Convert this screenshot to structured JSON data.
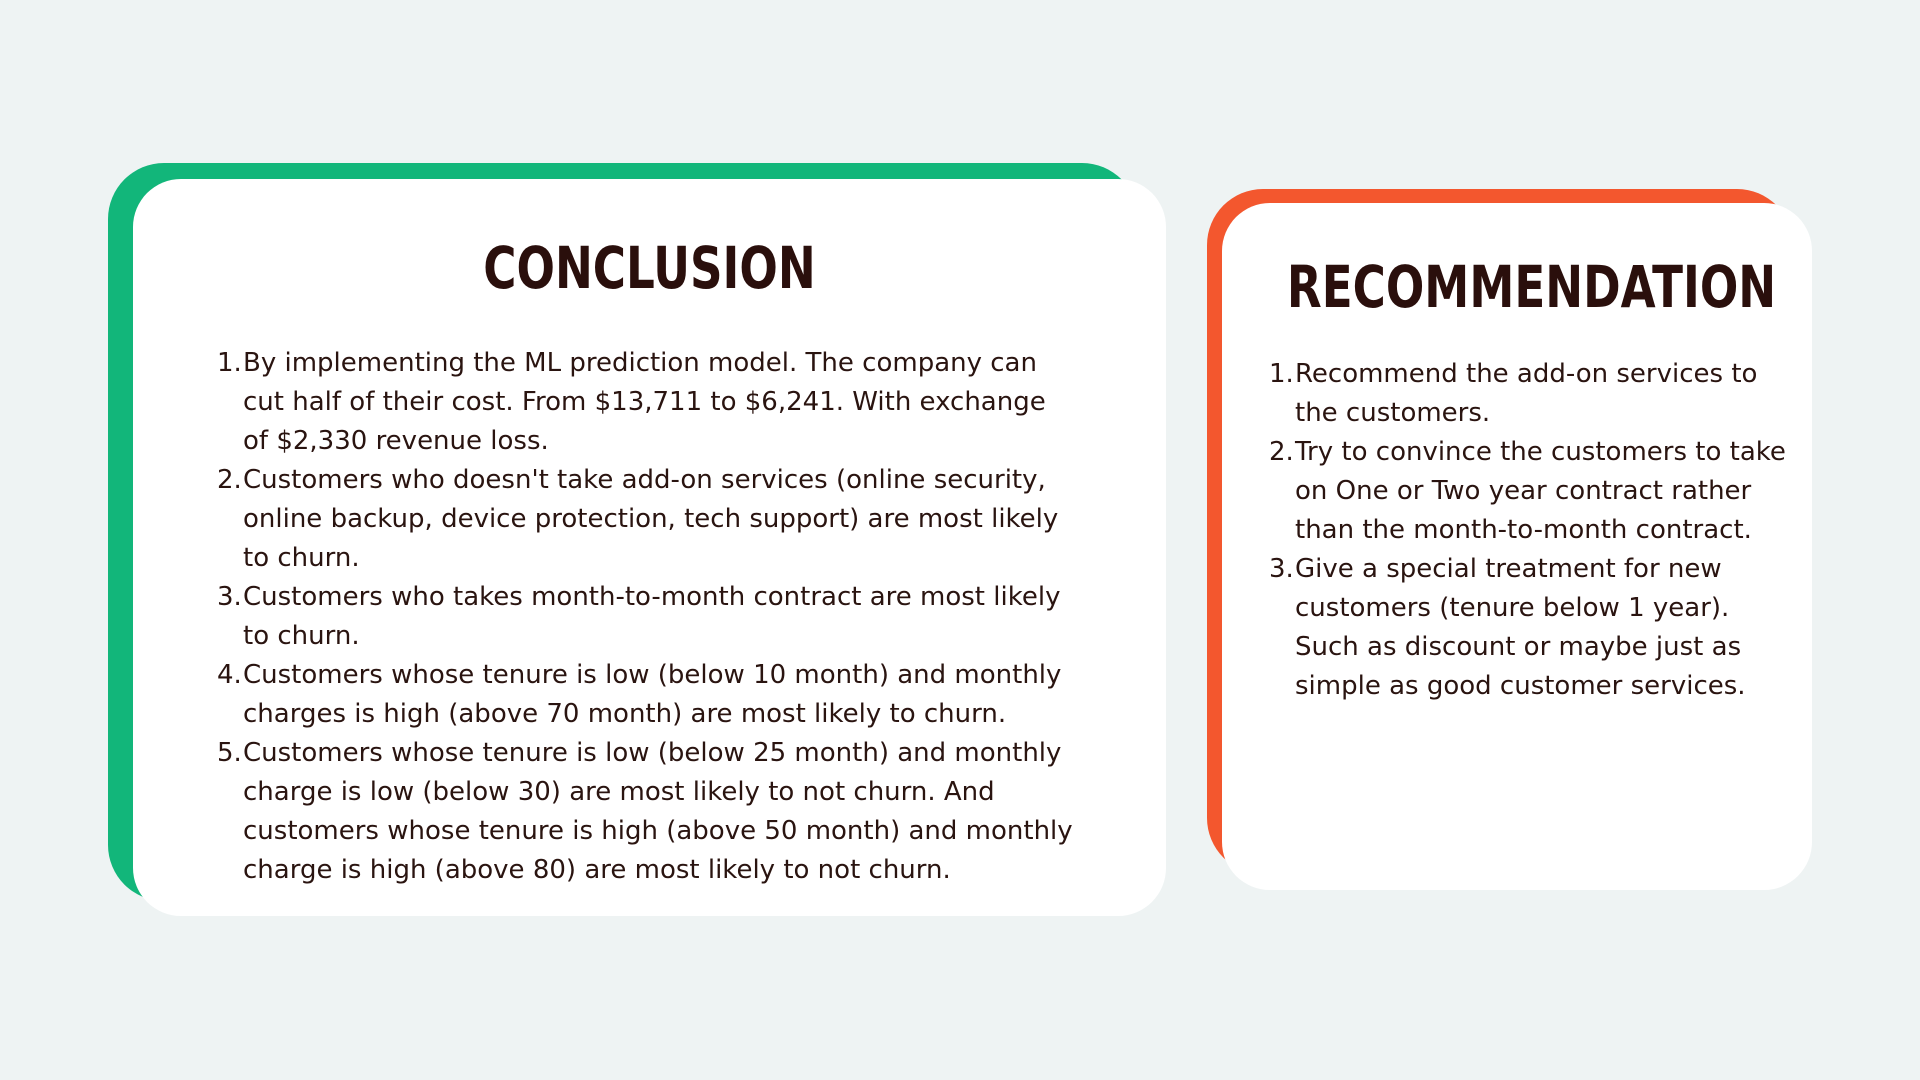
{
  "conclusion": {
    "title": "CONCLUSION",
    "items": [
      {
        "num": "1.",
        "text": "By implementing the ML prediction model. The company can cut half of their cost. From $13,711 to $6,241. With exchange of $2,330 revenue loss."
      },
      {
        "num": "2.",
        "text": "Customers who doesn't take add-on services (online security, online backup, device protection, tech support) are most likely to churn."
      },
      {
        "num": "3.",
        "text": "Customers who takes month-to-month contract are most likely to churn."
      },
      {
        "num": "4.",
        "text": "Customers whose tenure is low (below 10 month) and monthly charges is high (above 70 month) are most likely to churn."
      },
      {
        "num": "5.",
        "text": "Customers whose tenure is low (below 25 month) and monthly charge is low (below 30) are most likely to not churn. And customers whose tenure is high (above 50 month) and monthly charge is high (above 80) are most likely to not churn."
      }
    ]
  },
  "recommendation": {
    "title": "RECOMMENDATION",
    "items": [
      {
        "num": "1.",
        "text": "Recommend the add-on services to the customers."
      },
      {
        "num": "2.",
        "text": "Try to convince the customers to take on One or Two year contract rather than the month-to-month contract."
      },
      {
        "num": "3.",
        "text": "Give a special treatment for new customers (tenure below 1 year). Such as discount or maybe just as simple as good customer services."
      }
    ]
  },
  "colors": {
    "background": "#eef3f3",
    "conclusion_accent": "#12b67a",
    "recommendation_accent": "#f3572e",
    "title_text": "#2a0f0c",
    "body_text": "#2a1410"
  }
}
